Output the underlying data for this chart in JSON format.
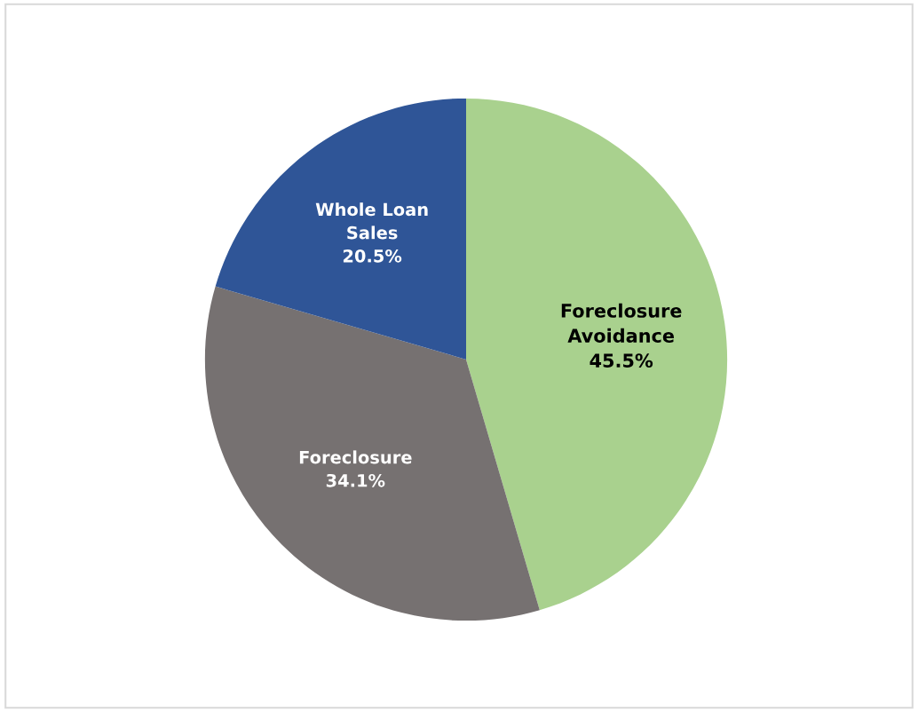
{
  "chart_data": {
    "type": "pie",
    "categories": [
      "Foreclosure Avoidance",
      "Foreclosure",
      "Whole Loan Sales"
    ],
    "values": [
      45.5,
      34.1,
      20.5
    ],
    "colors": [
      "#a9d18e",
      "#767171",
      "#2f5597"
    ],
    "value_labels": [
      "45.5%",
      "34.1%",
      "20.5%"
    ],
    "legend": false
  }
}
